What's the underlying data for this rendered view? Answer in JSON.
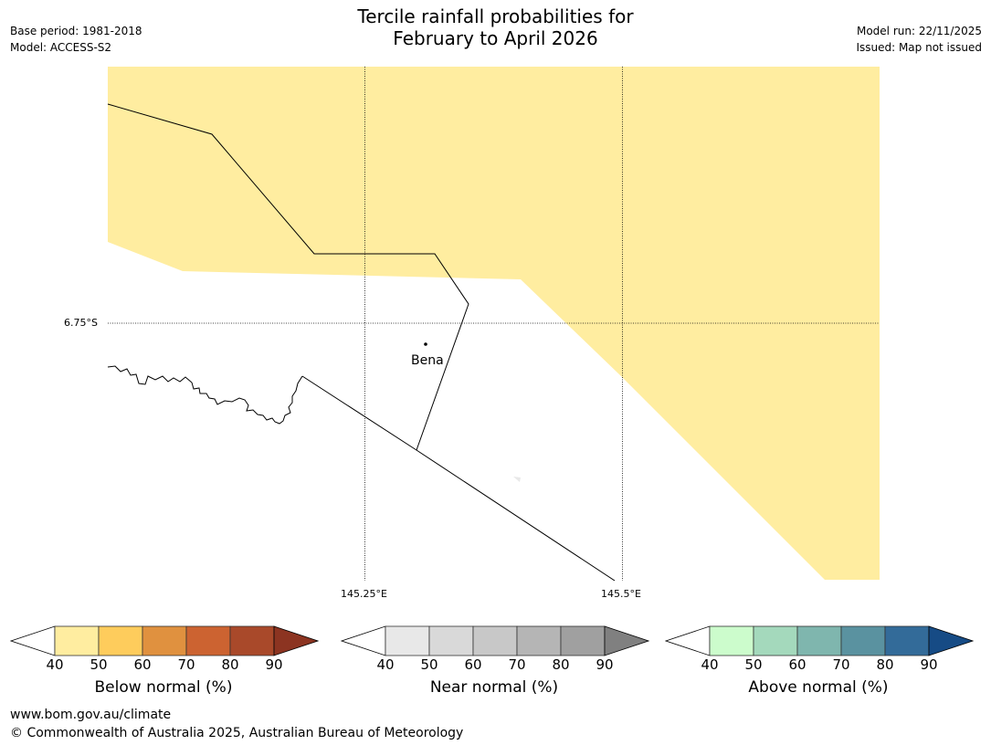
{
  "header": {
    "title_line1": "Tercile rainfall probabilities for",
    "title_line2": "February to April 2026",
    "base_period": "Base period: 1981-2018",
    "model": "Model: ACCESS-S2",
    "model_run": "Model run: 22/11/2025",
    "issued": "Issued: Map not issued"
  },
  "map": {
    "lat_label": "6.75°S",
    "lon_labels": [
      "145.25°E",
      "145.5°E"
    ],
    "place": "Bena",
    "shading_category": "Below normal 40–50%",
    "colors": {
      "land_fill": "#ffeda0",
      "border": "#000000",
      "gridline": "#000000"
    }
  },
  "colorbars": [
    {
      "title": "Below normal (%)",
      "ticks": [
        "40",
        "50",
        "60",
        "70",
        "80",
        "90"
      ],
      "colors": [
        "#ffffff",
        "#ffeda0",
        "#fecc5c",
        "#e0913f",
        "#cc6331",
        "#a9492a",
        "#8c3421"
      ]
    },
    {
      "title": "Near normal (%)",
      "ticks": [
        "40",
        "50",
        "60",
        "70",
        "80",
        "90"
      ],
      "colors": [
        "#ffffff",
        "#e8e8e8",
        "#d9d9d9",
        "#c8c8c8",
        "#b5b5b5",
        "#a0a0a0",
        "#808080"
      ]
    },
    {
      "title": "Above normal (%)",
      "ticks": [
        "40",
        "50",
        "60",
        "70",
        "80",
        "90"
      ],
      "colors": [
        "#ffffff",
        "#ccfccc",
        "#a4d9bc",
        "#7fb6ae",
        "#5a92a0",
        "#336b99",
        "#164b85"
      ]
    }
  ],
  "footer": {
    "url": "www.bom.gov.au/climate",
    "copyright": "© Commonwealth of Australia 2025, Australian Bureau of Meteorology"
  }
}
